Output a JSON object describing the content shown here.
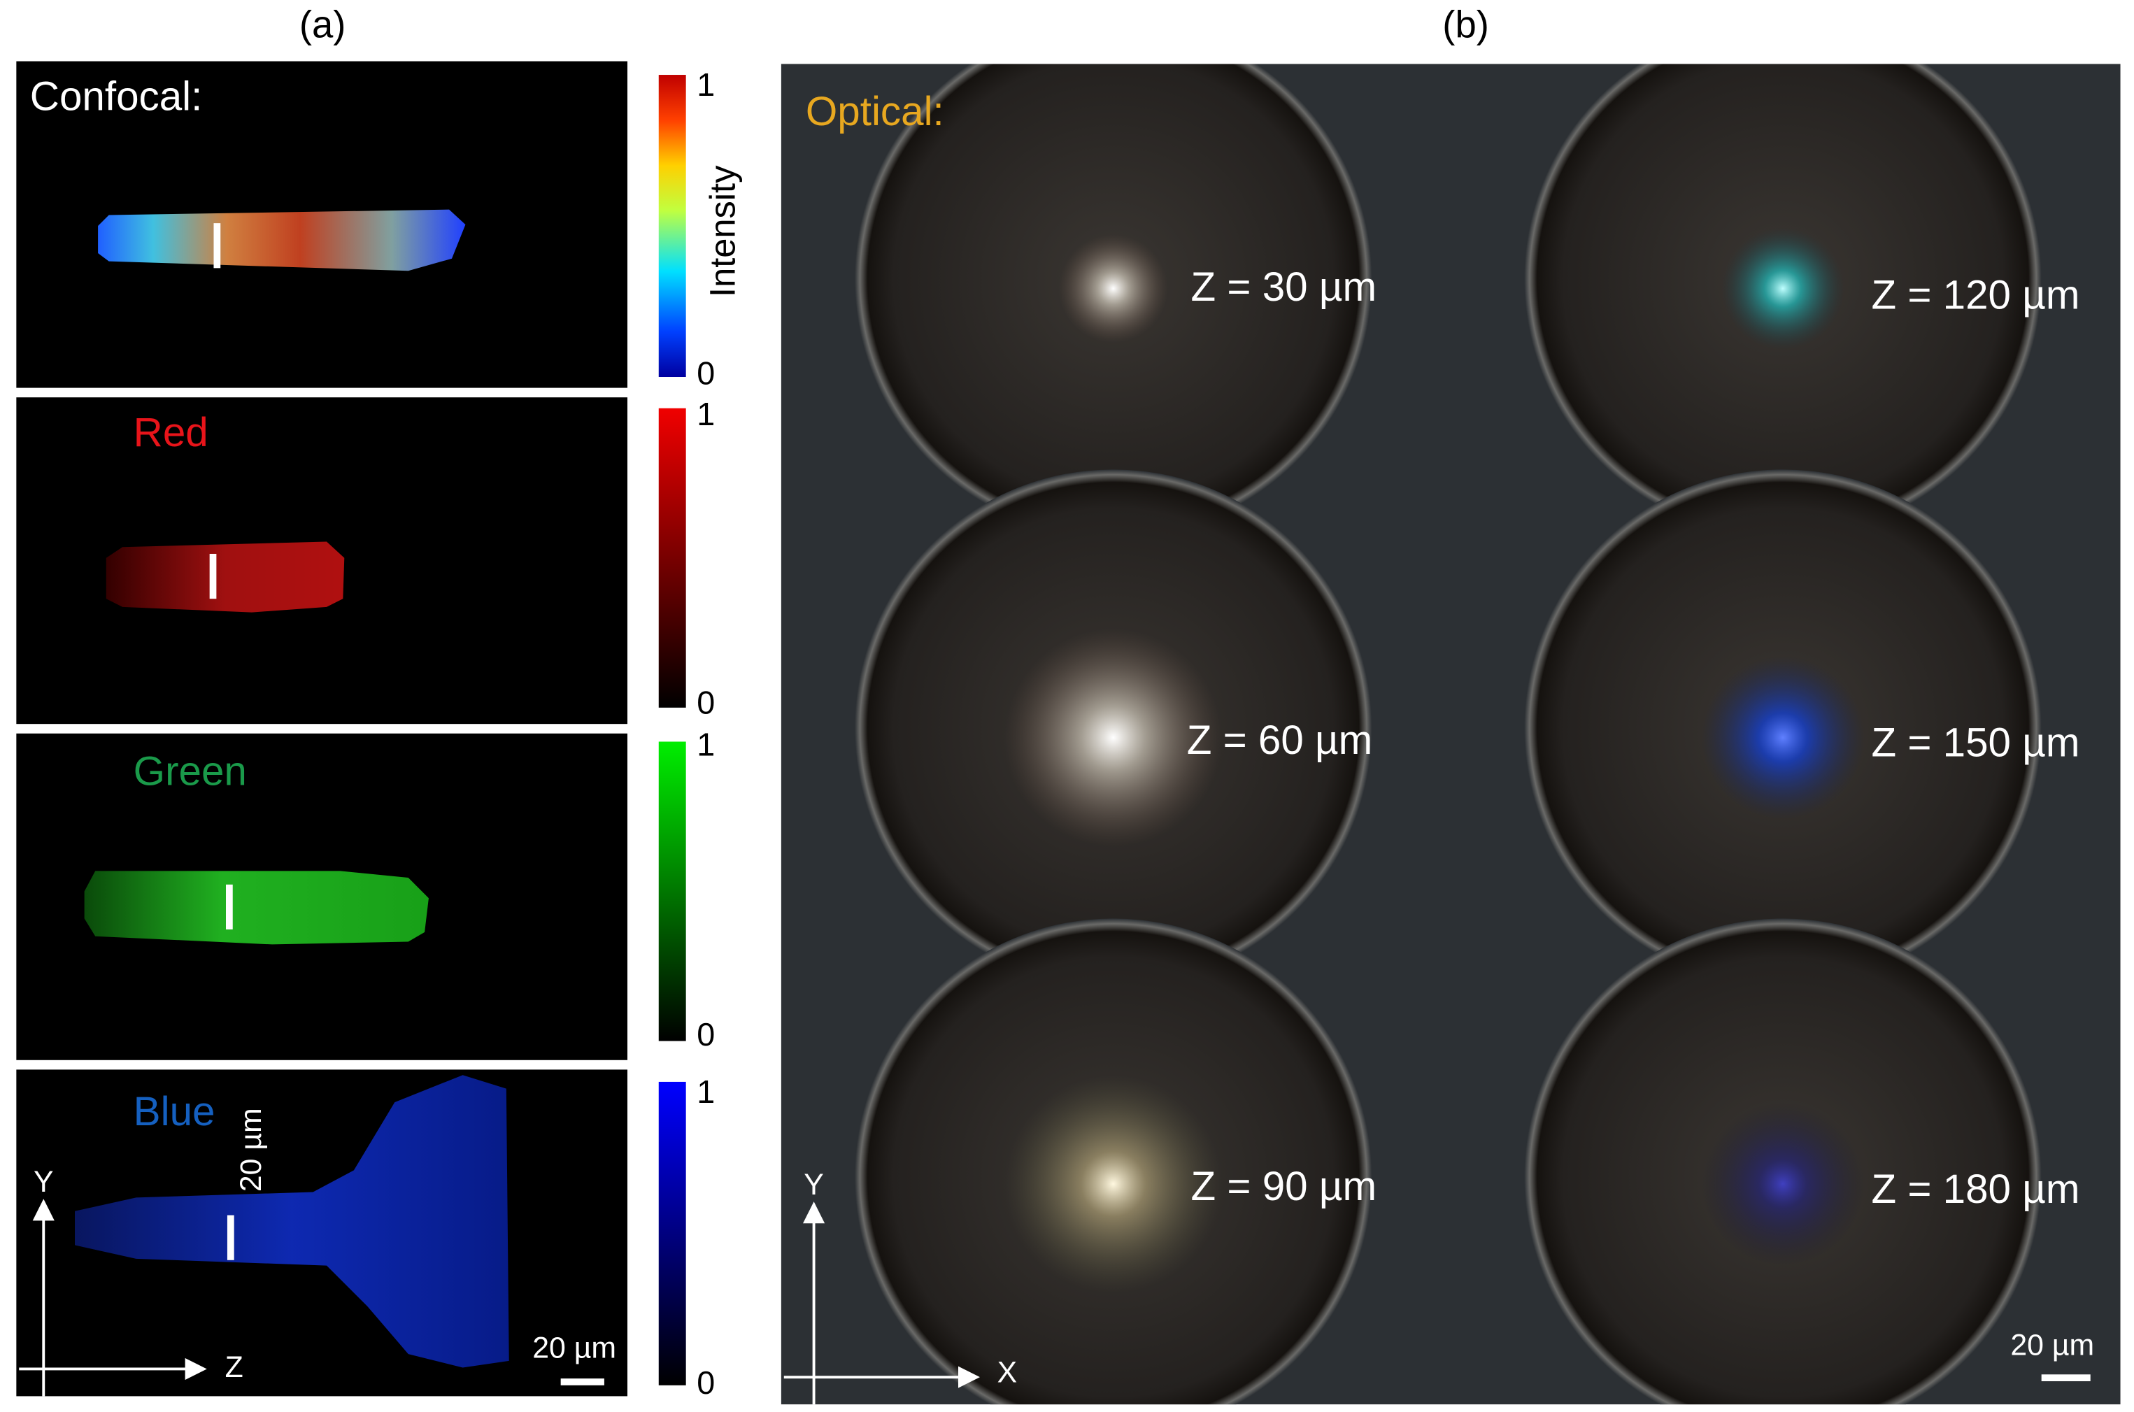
{
  "panel_a": {
    "label": "(a)",
    "colorbar_label": "Intensity",
    "rows": [
      {
        "label": "Confocal:",
        "cbar_max": 1,
        "cbar_min": 0
      },
      {
        "label": "Red",
        "cbar_max": 1,
        "cbar_min": 0
      },
      {
        "label": "Green",
        "cbar_max": 1,
        "cbar_min": 0
      },
      {
        "label": "Blue",
        "cbar_max": 1,
        "cbar_min": 0
      }
    ],
    "vertical_scale_bar": "20 µm",
    "scale_bar": "20 µm",
    "axis_y": "Y",
    "axis_x": "Z"
  },
  "panel_b": {
    "label": "(b)",
    "title": "Optical:",
    "images": [
      {
        "label": "Z = 30 µm"
      },
      {
        "label": "Z = 120 µm"
      },
      {
        "label": "Z = 60 µm"
      },
      {
        "label": "Z = 150 µm"
      },
      {
        "label": "Z = 90 µm"
      },
      {
        "label": "Z = 180 µm"
      }
    ],
    "scale_bar": "20 µm",
    "axis_y": "Y",
    "axis_x": "X"
  }
}
